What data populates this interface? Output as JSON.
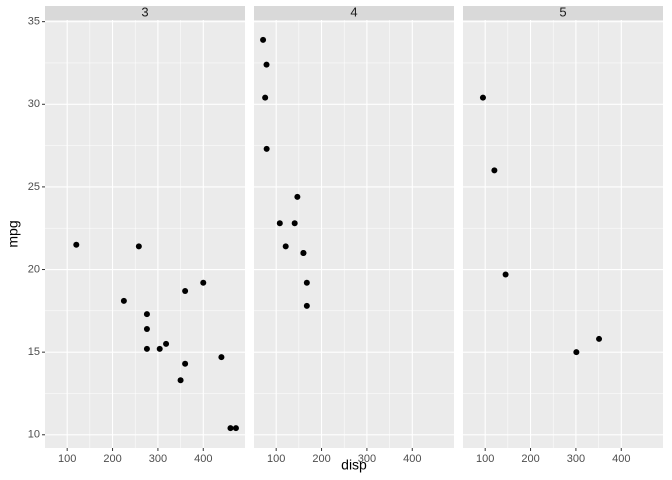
{
  "chart_data": [
    {
      "type": "scatter",
      "title": "3",
      "y_label": "mpg",
      "x": [
        258,
        360,
        225,
        360,
        275.8,
        275.8,
        275.8,
        472,
        460,
        440,
        120.1,
        318,
        304,
        350,
        400
      ],
      "values": [
        21.4,
        18.7,
        18.1,
        14.3,
        16.4,
        17.3,
        15.2,
        10.4,
        10.4,
        14.7,
        21.5,
        15.5,
        15.2,
        13.3,
        19.2
      ],
      "color": "#000000",
      "xlim": [
        51.1,
        492
      ],
      "ylim": [
        9.2,
        35.1
      ],
      "xticks": [
        100,
        200,
        300,
        400
      ],
      "yticks": [
        10,
        15,
        20,
        25,
        30,
        35
      ],
      "grid": true
    },
    {
      "type": "scatter",
      "title": "4",
      "x_label": "disp",
      "x": [
        160,
        160,
        108,
        146.7,
        140.8,
        167.6,
        167.6,
        78.7,
        75.7,
        71.1,
        79,
        121
      ],
      "values": [
        21,
        21,
        22.8,
        24.4,
        22.8,
        19.2,
        17.8,
        32.4,
        30.4,
        33.9,
        27.3,
        21.4
      ],
      "color": "#000000",
      "xlim": [
        51.1,
        492
      ],
      "ylim": [
        9.2,
        35.1
      ],
      "xticks": [
        100,
        200,
        300,
        400
      ],
      "yticks": [
        10,
        15,
        20,
        25,
        30,
        35
      ],
      "grid": true
    },
    {
      "type": "scatter",
      "title": "5",
      "x": [
        120.3,
        95.1,
        351,
        145,
        301
      ],
      "values": [
        26,
        30.4,
        15.8,
        19.7,
        15
      ],
      "color": "#000000",
      "xlim": [
        51.1,
        492
      ],
      "ylim": [
        9.2,
        35.1
      ],
      "xticks": [
        100,
        200,
        300,
        400
      ],
      "yticks": [
        10,
        15,
        20,
        25,
        30,
        35
      ],
      "grid": true
    }
  ]
}
